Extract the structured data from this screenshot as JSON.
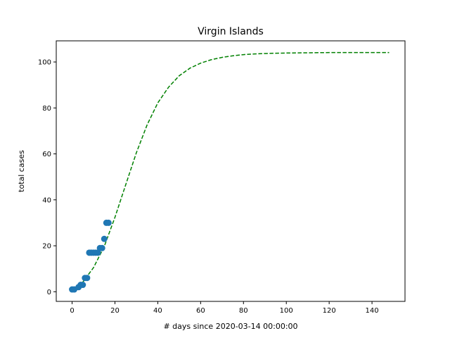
{
  "chart_data": {
    "type": "scatter",
    "title": "Virgin Islands",
    "xlabel": "# days since 2020-03-14 00:00:00",
    "ylabel": "total cases",
    "xlim": [
      -7.4,
      155.4
    ],
    "ylim": [
      -4.2,
      109.2
    ],
    "xticks": [
      0,
      20,
      40,
      60,
      80,
      100,
      120,
      140
    ],
    "yticks": [
      0,
      20,
      40,
      60,
      80,
      100
    ],
    "grid": false,
    "series": [
      {
        "kind": "scatter",
        "color": "#1f77b4",
        "points": [
          [
            0,
            1
          ],
          [
            1,
            1
          ],
          [
            3,
            2
          ],
          [
            4,
            3
          ],
          [
            5,
            3
          ],
          [
            6,
            6
          ],
          [
            7,
            6
          ],
          [
            8,
            17
          ],
          [
            9,
            17
          ],
          [
            10,
            17
          ],
          [
            11,
            17
          ],
          [
            12,
            17
          ],
          [
            13,
            19
          ],
          [
            14,
            19
          ],
          [
            15,
            23
          ],
          [
            16,
            30
          ],
          [
            17,
            30
          ]
        ]
      },
      {
        "kind": "line",
        "style": "dashed",
        "color": "#008000",
        "points": [
          [
            0,
            0.9
          ],
          [
            5,
            4.2
          ],
          [
            10,
            10.5
          ],
          [
            15,
            19.7
          ],
          [
            20,
            32.4
          ],
          [
            25,
            46.5
          ],
          [
            30,
            60.5
          ],
          [
            35,
            72.6
          ],
          [
            40,
            82.2
          ],
          [
            45,
            89.0
          ],
          [
            50,
            94.0
          ],
          [
            55,
            97.3
          ],
          [
            60,
            99.5
          ],
          [
            65,
            101.0
          ],
          [
            70,
            102.0
          ],
          [
            75,
            102.7
          ],
          [
            80,
            103.2
          ],
          [
            85,
            103.5
          ],
          [
            90,
            103.7
          ],
          [
            100,
            103.9
          ],
          [
            110,
            104.0
          ],
          [
            120,
            104.1
          ],
          [
            130,
            104.1
          ],
          [
            140,
            104.1
          ],
          [
            148,
            104.1
          ]
        ]
      }
    ]
  }
}
